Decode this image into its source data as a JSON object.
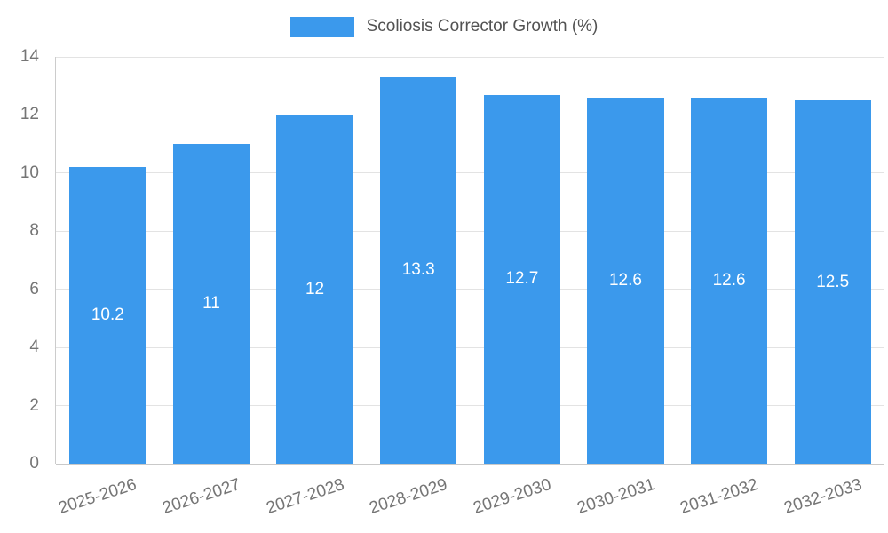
{
  "chart_data": {
    "type": "bar",
    "title": "Scoliosis Corrector Growth (%)",
    "legend": {
      "label": "Scoliosis Corrector Growth (%)",
      "position": "top"
    },
    "categories": [
      "2025-2026",
      "2026-2027",
      "2027-2028",
      "2028-2029",
      "2029-2030",
      "2030-2031",
      "2031-2032",
      "2032-2033"
    ],
    "values": [
      10.2,
      11,
      12,
      13.3,
      12.7,
      12.6,
      12.6,
      12.5
    ],
    "value_labels": [
      "10.2",
      "11",
      "12",
      "13.3",
      "12.7",
      "12.6",
      "12.6",
      "12.5"
    ],
    "xlabel": "",
    "ylabel": "",
    "ylim": [
      0,
      14
    ],
    "yticks": [
      0,
      2,
      4,
      6,
      8,
      10,
      12,
      14
    ],
    "grid": true,
    "bar_color": "#3b99ec",
    "value_label_color": "#ffffff",
    "axis_label_color": "#757575",
    "gridline_color": "#e3e3e3"
  }
}
